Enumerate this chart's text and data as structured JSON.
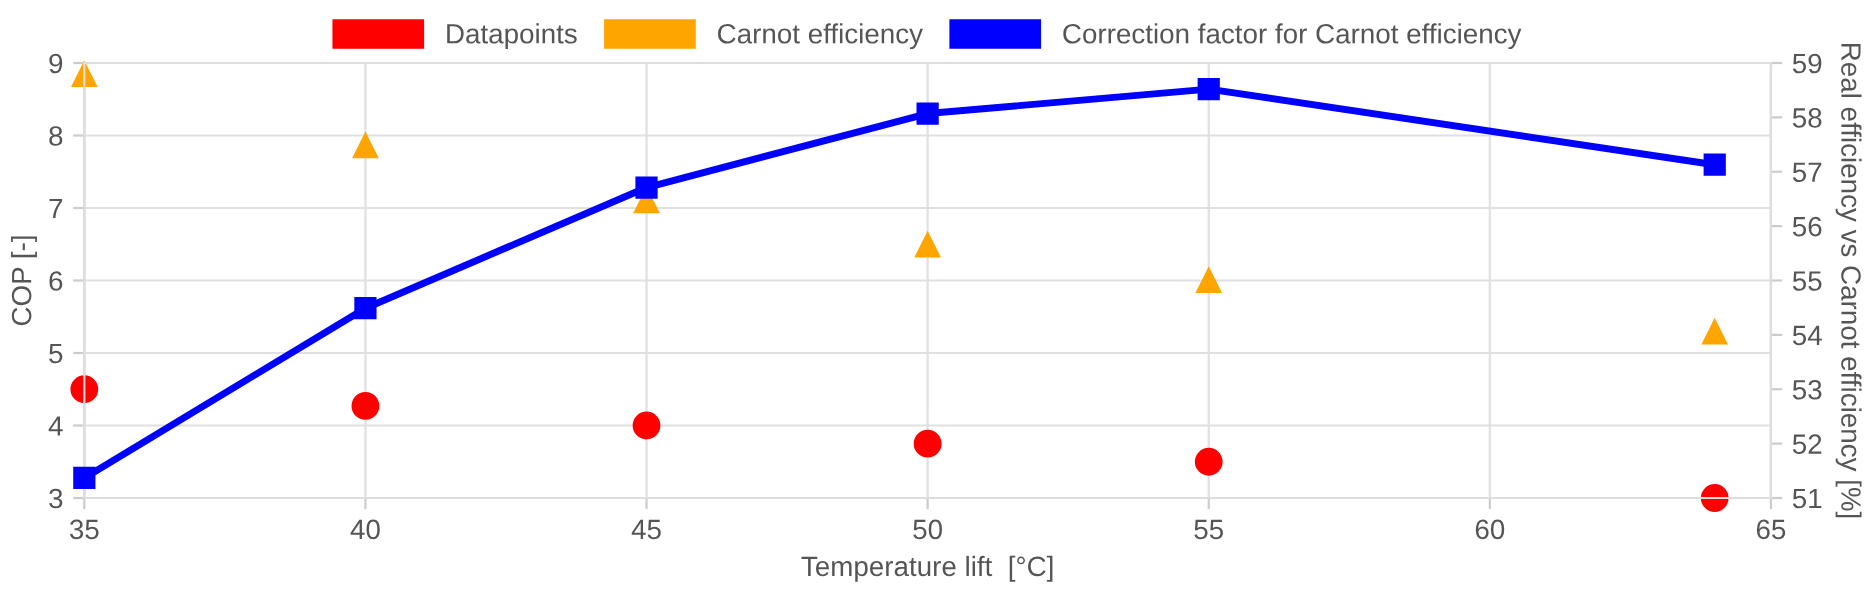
{
  "chart_data": {
    "type": "scatter",
    "xlabel": "Temperature lift  [°C]",
    "ylabel": "COP [-]",
    "y2label": "Real efficiency vs Carnot efficiency [%]",
    "x": [
      35,
      40,
      45,
      50,
      55,
      64
    ],
    "series": [
      {
        "name": "Datapoints",
        "color": "#ff0000",
        "marker": "circle",
        "values": [
          4.5,
          4.27,
          4.0,
          3.75,
          3.5,
          3.0
        ]
      },
      {
        "name": "Carnot efficiency",
        "color": "#ffa500",
        "marker": "triangle",
        "values": [
          8.84,
          7.86,
          7.1,
          6.49,
          6.0,
          5.29
        ]
      },
      {
        "name": "Correction factor for Carnot efficiency",
        "color": "#0000ff",
        "type": "line",
        "marker": "square",
        "axis": "y2",
        "values": [
          51.37,
          54.49,
          56.71,
          58.07,
          58.52,
          57.13
        ]
      }
    ],
    "xlim": [
      35,
      65
    ],
    "xticks": [
      35,
      40,
      45,
      50,
      55,
      60,
      65
    ],
    "ylim": [
      3,
      9
    ],
    "yticks": [
      3,
      4,
      5,
      6,
      7,
      8,
      9
    ],
    "y2lim": [
      51,
      59
    ],
    "y2ticks": [
      51,
      52,
      53,
      54,
      55,
      56,
      57,
      58,
      59
    ],
    "grid": true,
    "legend": "top"
  }
}
